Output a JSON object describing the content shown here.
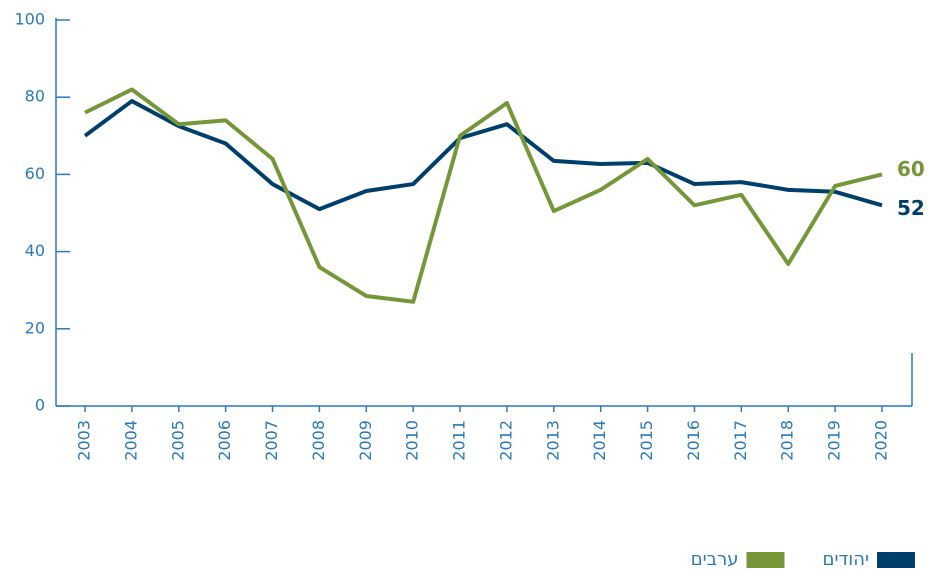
{
  "chart_data": {
    "type": "line",
    "x": [
      2003,
      2004,
      2005,
      2006,
      2007,
      2008,
      2009,
      2010,
      2011,
      2012,
      2013,
      2014,
      2015,
      2016,
      2017,
      2018,
      2019,
      2020
    ],
    "series": [
      {
        "name": "יהודים",
        "color": "#003f6b",
        "values": [
          70,
          79,
          72.5,
          68,
          57.5,
          51,
          55.7,
          57.5,
          69.4,
          73,
          63.5,
          62.7,
          63,
          57.5,
          58,
          56,
          55.5,
          52
        ]
      },
      {
        "name": "ערבים",
        "color": "#76963a",
        "values": [
          76,
          82,
          73,
          74,
          64,
          36,
          28.5,
          27,
          70,
          78.5,
          50.5,
          56,
          64,
          52,
          54.7,
          36.8,
          57,
          60
        ]
      }
    ],
    "ylim": [
      0,
      100
    ],
    "yticks": [
      0,
      20,
      40,
      60,
      80,
      100
    ]
  }
}
